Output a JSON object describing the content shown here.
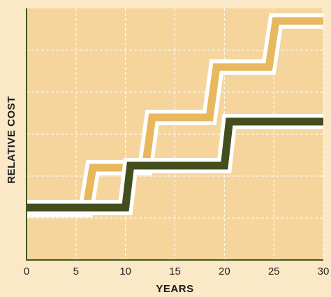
{
  "chart_data": {
    "type": "line",
    "title": "",
    "xlabel": "YEARS",
    "ylabel": "RELATIVE COST",
    "xlim": [
      0,
      30
    ],
    "ylim": [
      0,
      6
    ],
    "x_ticks": [
      0,
      5,
      10,
      15,
      20,
      25,
      30
    ],
    "y_ticks": [
      1,
      2,
      3,
      4,
      5
    ],
    "x_tick_labels": [
      "0",
      "5",
      "10",
      "15",
      "20",
      "25",
      "30"
    ],
    "y_tick_labels": [],
    "grid": true,
    "legend": "none",
    "series": [
      {
        "points": [
          [
            0,
            1.2
          ],
          [
            6,
            1.2
          ],
          [
            6.7,
            2.2
          ],
          [
            12,
            2.2
          ],
          [
            12.7,
            3.4
          ],
          [
            18.5,
            3.4
          ],
          [
            19.2,
            4.6
          ],
          [
            24.5,
            4.6
          ],
          [
            25.2,
            5.7
          ],
          [
            30,
            5.7
          ]
        ],
        "color": "#e8b85e"
      },
      {
        "points": [
          [
            0,
            1.25
          ],
          [
            10,
            1.25
          ],
          [
            10.5,
            2.25
          ],
          [
            20,
            2.25
          ],
          [
            20.5,
            3.3
          ],
          [
            30,
            3.3
          ]
        ],
        "color": "#444d1c"
      }
    ]
  },
  "colors": {
    "page_background": "#fbe8c6",
    "plot_background": "#f6d59c",
    "grid": "#ffffff",
    "axis": "#3d5a1e",
    "halo": "#ffffff"
  }
}
